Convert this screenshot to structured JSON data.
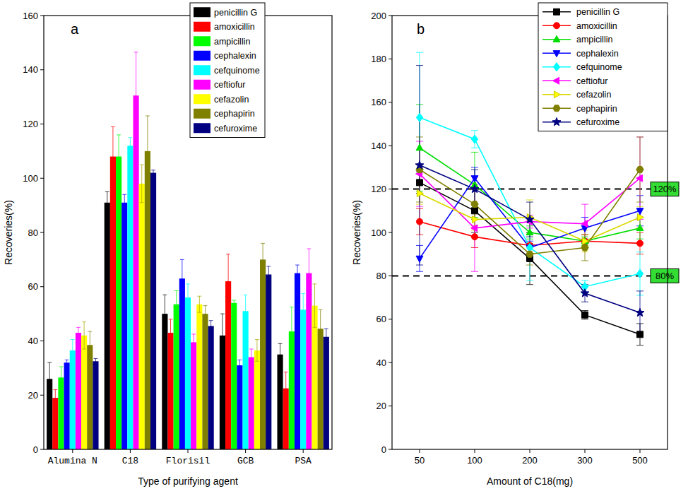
{
  "chart_data": [
    {
      "type": "bar",
      "title": "a",
      "x_label": "Type of purifying agent",
      "y_label": "Recoveries(%)",
      "categories": [
        "Alumina N",
        "C18",
        "Florisil",
        "GCB",
        "PSA"
      ],
      "ylim": [
        0,
        160
      ],
      "yticks": [
        0,
        20,
        40,
        60,
        80,
        100,
        120,
        140,
        160
      ],
      "grid": false,
      "legend": "upper right",
      "series": [
        {
          "name": "penicillin G",
          "color": "#000000",
          "values": [
            26,
            91,
            50,
            42,
            35
          ],
          "errors": [
            6,
            4,
            7,
            8,
            4
          ]
        },
        {
          "name": "amoxicillin",
          "color": "#ff0000",
          "values": [
            19,
            108,
            43,
            62,
            22.5
          ],
          "errors": [
            3,
            11,
            5,
            10,
            6
          ]
        },
        {
          "name": "ampicillin",
          "color": "#00ff00",
          "values": [
            26.5,
            108,
            53.5,
            54,
            43.5
          ],
          "errors": [
            4,
            8,
            5,
            1,
            9
          ]
        },
        {
          "name": "cephalexin",
          "color": "#0000ff",
          "values": [
            32,
            91,
            63,
            31,
            65
          ],
          "errors": [
            1,
            3,
            7,
            2,
            3
          ]
        },
        {
          "name": "cefquinome",
          "color": "#00ffff",
          "values": [
            36.5,
            112,
            56,
            51,
            51.5
          ],
          "errors": [
            4,
            3,
            5,
            6,
            6
          ]
        },
        {
          "name": "ceftiofur",
          "color": "#ff00ff",
          "values": [
            43,
            130.5,
            39.5,
            34,
            65
          ],
          "errors": [
            2,
            16,
            3,
            3,
            9
          ]
        },
        {
          "name": "cefazolin",
          "color": "#ffff00",
          "values": [
            42,
            98,
            53.5,
            36.5,
            53
          ],
          "errors": [
            5,
            7,
            3,
            4,
            8
          ]
        },
        {
          "name": "cephapirin",
          "color": "#808000",
          "values": [
            38.5,
            110,
            50,
            70,
            44.5
          ],
          "errors": [
            5,
            13,
            3,
            6,
            7
          ]
        },
        {
          "name": "cefuroxime",
          "color": "#000080",
          "values": [
            32.5,
            102,
            45.5,
            64.5,
            41.5
          ],
          "errors": [
            1,
            1,
            2,
            3,
            3
          ]
        }
      ]
    },
    {
      "type": "line",
      "title": "b",
      "x_label": "Amount of C18(mg)",
      "y_label": "Recoveries(%)",
      "categories": [
        "50",
        "100",
        "200",
        "300",
        "500"
      ],
      "ylim": [
        0,
        200
      ],
      "yticks": [
        0,
        20,
        40,
        60,
        80,
        100,
        120,
        140,
        160,
        180,
        200
      ],
      "grid": false,
      "legend": "upper right",
      "annotations": [
        {
          "y": 120,
          "text": "120%"
        },
        {
          "y": 80,
          "text": "80%"
        }
      ],
      "series": [
        {
          "name": "penicillin G",
          "color": "#000000",
          "marker": "square",
          "values": [
            123,
            110,
            88,
            62,
            53
          ],
          "errors": [
            5,
            10,
            12,
            2,
            5
          ]
        },
        {
          "name": "amoxicillin",
          "color": "#ff0000",
          "marker": "circle",
          "values": [
            105,
            98,
            94,
            96,
            95
          ],
          "errors": [
            6,
            5,
            5,
            3,
            5
          ]
        },
        {
          "name": "ampicillin",
          "color": "#00dd00",
          "marker": "triangle-up",
          "values": [
            139,
            122,
            100,
            96,
            102
          ],
          "errors": [
            20,
            15,
            3,
            2,
            5
          ]
        },
        {
          "name": "cephalexin",
          "color": "#0000ff",
          "marker": "triangle-down",
          "values": [
            88,
            125,
            93,
            102,
            110
          ],
          "errors": [
            6,
            5,
            3,
            5,
            7
          ]
        },
        {
          "name": "cefquinome",
          "color": "#00ffff",
          "marker": "diamond",
          "values": [
            153,
            143,
            93,
            75,
            81
          ],
          "errors": [
            30,
            4,
            15,
            3,
            10
          ]
        },
        {
          "name": "ceftiofur",
          "color": "#ff00ff",
          "marker": "triangle-left",
          "values": [
            127,
            102,
            105,
            104,
            125
          ],
          "errors": [
            15,
            20,
            3,
            9,
            19
          ]
        },
        {
          "name": "cefazolin",
          "color": "#ffff00",
          "marker": "triangle-right",
          "values": [
            118,
            106,
            107,
            96,
            107
          ],
          "errors": [
            5,
            5,
            8,
            5,
            5
          ]
        },
        {
          "name": "cephapirin",
          "color": "#808000",
          "marker": "hexagon",
          "values": [
            129,
            113,
            90,
            93,
            129
          ],
          "errors": [
            15,
            7,
            5,
            6,
            15
          ]
        },
        {
          "name": "cefuroxime",
          "color": "#000080",
          "marker": "star",
          "values": [
            131,
            120,
            106,
            72,
            63
          ],
          "errors": [
            46,
            9,
            8,
            4,
            10
          ]
        }
      ]
    }
  ]
}
